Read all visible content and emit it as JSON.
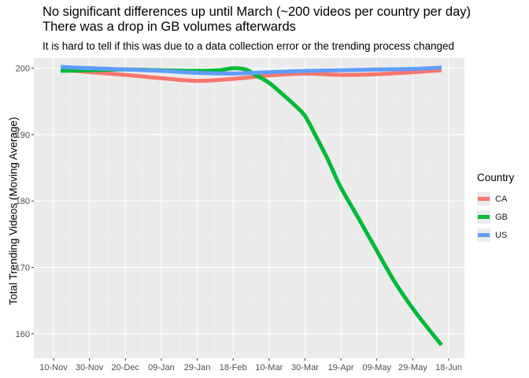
{
  "chart_data": {
    "type": "line",
    "title": "No significant differences up until March (~200 videos per country per day)",
    "title_line2": "There was a drop in GB volumes afterwards",
    "subtitle": "It is hard to tell if this was due to a data collection error or the trending process changed",
    "ylabel": "Total Trending Videos (Moving Average)",
    "xlabel": "",
    "ylim": [
      156.3,
      201.5
    ],
    "y_ticks": [
      160,
      170,
      180,
      190,
      200
    ],
    "x_ticks": [
      "10-Nov",
      "30-Nov",
      "20-Dec",
      "09-Jan",
      "29-Jan",
      "18-Feb",
      "10-Mar",
      "30-Mar",
      "19-Apr",
      "09-May",
      "29-May",
      "18-Jun"
    ],
    "legend_title": "Country",
    "legend_position": "right",
    "grid": true,
    "series": [
      {
        "name": "CA",
        "color": "#F8766D",
        "x": [
          "2017-11-14",
          "2017-12-01",
          "2017-12-20",
          "2018-01-09",
          "2018-01-29",
          "2018-02-18",
          "2018-03-10",
          "2018-03-30",
          "2018-04-19",
          "2018-05-09",
          "2018-05-29",
          "2018-06-14"
        ],
        "values": [
          199.8,
          199.4,
          199.0,
          198.5,
          198.1,
          198.4,
          198.9,
          199.2,
          199.0,
          199.1,
          199.4,
          199.7
        ]
      },
      {
        "name": "GB",
        "color": "#00BA38",
        "x": [
          "2017-11-14",
          "2017-12-01",
          "2017-12-20",
          "2018-01-09",
          "2018-01-29",
          "2018-02-10",
          "2018-02-18",
          "2018-02-25",
          "2018-03-03",
          "2018-03-10",
          "2018-03-17",
          "2018-03-24",
          "2018-03-30",
          "2018-04-05",
          "2018-04-12",
          "2018-04-19",
          "2018-04-29",
          "2018-05-09",
          "2018-05-19",
          "2018-05-29",
          "2018-06-08",
          "2018-06-14"
        ],
        "values": [
          199.6,
          199.7,
          199.8,
          199.7,
          199.6,
          199.7,
          200.0,
          199.8,
          198.9,
          197.8,
          196.2,
          194.5,
          192.8,
          189.8,
          186.1,
          182.0,
          177.3,
          172.5,
          167.8,
          163.8,
          160.3,
          158.3
        ]
      },
      {
        "name": "US",
        "color": "#619CFF",
        "x": [
          "2017-11-14",
          "2017-12-01",
          "2017-12-20",
          "2018-01-09",
          "2018-01-29",
          "2018-02-18",
          "2018-03-10",
          "2018-03-30",
          "2018-04-19",
          "2018-05-09",
          "2018-05-29",
          "2018-06-14"
        ],
        "values": [
          200.2,
          200.0,
          199.8,
          199.6,
          199.3,
          199.2,
          199.4,
          199.6,
          199.7,
          199.8,
          199.9,
          200.1
        ]
      }
    ]
  }
}
